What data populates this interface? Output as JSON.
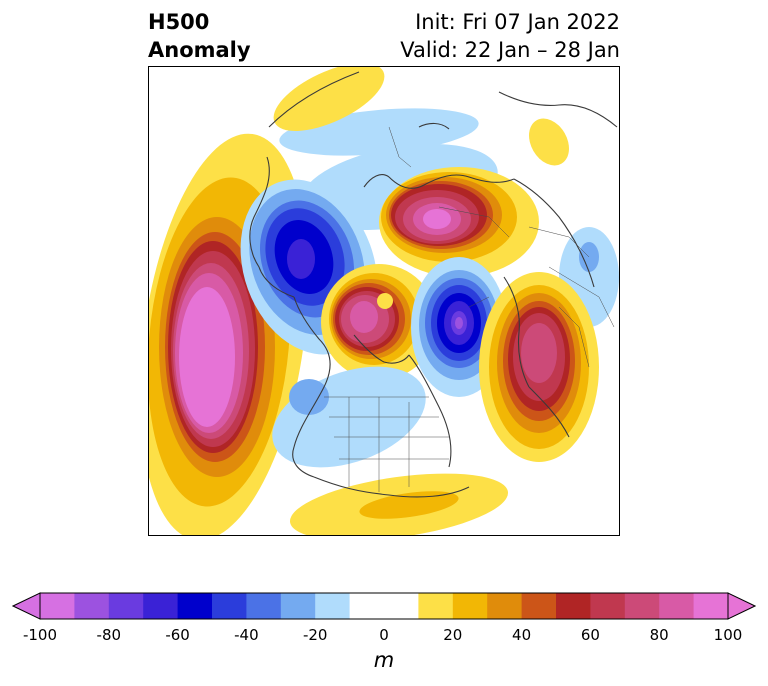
{
  "title": {
    "left_line1": "H500",
    "left_line2": "Anomaly",
    "right_line1": "Init: Fri 07 Jan 2022",
    "right_line2": "Valid: 22 Jan – 28 Jan"
  },
  "colorbar": {
    "units": "m",
    "extend": "both",
    "levels": [
      -100,
      -90,
      -80,
      -70,
      -60,
      -50,
      -40,
      -30,
      -20,
      -10,
      10,
      20,
      30,
      40,
      50,
      60,
      70,
      80,
      90,
      100
    ],
    "colors": [
      "#d670e2",
      "#9c52e0",
      "#6a3be0",
      "#3a22d6",
      "#0000cc",
      "#2b3ddb",
      "#4b72e6",
      "#74aaf0",
      "#b0dcfc",
      "#ffffff",
      "#fde047",
      "#f2b705",
      "#e08c0b",
      "#cc5518",
      "#b02525",
      "#c0384f",
      "#cc4a78",
      "#d85aa6",
      "#e673d6"
    ],
    "tick_labels": [
      "-100",
      "-80",
      "-60",
      "-40",
      "-20",
      "0",
      "20",
      "40",
      "60",
      "80",
      "100"
    ]
  },
  "map": {
    "projection": "north-polar-stereographic",
    "anomaly_centers": [
      {
        "region": "north-pacific",
        "sign": "positive",
        "peak_m": 100
      },
      {
        "region": "hudson-bay-canada",
        "sign": "positive",
        "peak_m": 90
      },
      {
        "region": "east-siberia",
        "sign": "positive",
        "peak_m": 100
      },
      {
        "region": "western-europe",
        "sign": "positive",
        "peak_m": 90
      },
      {
        "region": "north-atlantic-greenland",
        "sign": "negative",
        "peak_m": -100
      },
      {
        "region": "siberia-kara",
        "sign": "negative",
        "peak_m": -90
      },
      {
        "region": "western-us",
        "sign": "negative",
        "peak_m": -20
      },
      {
        "region": "southern-us",
        "sign": "positive",
        "peak_m": 20
      }
    ]
  }
}
